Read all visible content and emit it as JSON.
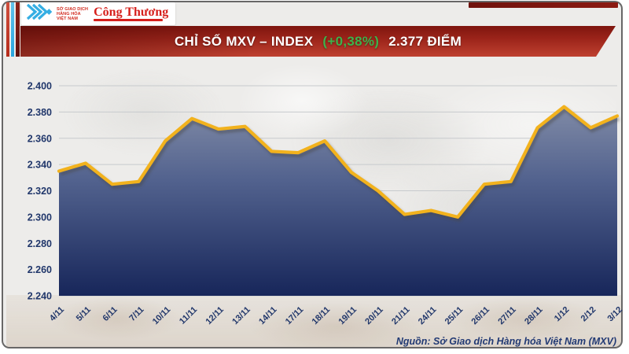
{
  "header": {
    "mxv": {
      "org_lines": [
        "SỞ GIAO DỊCH",
        "HÀNG HÓA",
        "VIỆT NAM"
      ],
      "icon": "mxv-chevrons-icon"
    },
    "congthuong": {
      "wordmark": "Công Thương"
    }
  },
  "banner": {
    "title_prefix": "CHỈ SỐ MXV – INDEX",
    "change": "(+0,38%)",
    "value_text": "2.377 ĐIỂM"
  },
  "footer": {
    "source": "Nguồn: Sở Giao dịch Hàng hóa Việt Nam (MXV)"
  },
  "colors": {
    "banner_red_top": "#7e150e",
    "banner_red_bottom": "#bf4130",
    "change_green": "#3db24b",
    "line_yellow": "#f2b21d",
    "fill_top": "#8d96ad",
    "fill_mid": "#52628e",
    "fill_bottom": "#17265a",
    "axis_text": "#21376b",
    "gridline": "#c7cacd",
    "logo_cyan": "#35aee3",
    "logo_red": "#d6201c"
  },
  "chart_data": {
    "type": "area",
    "title": "CHỈ SỐ MXV – INDEX (+0,38%) 2.377 ĐIỂM",
    "unit": "điểm",
    "value_format": "vi-VN (dot = thousands separator)",
    "categories": [
      "4/11",
      "5/11",
      "6/11",
      "7/11",
      "10/11",
      "11/11",
      "12/11",
      "13/11",
      "14/11",
      "17/11",
      "18/11",
      "19/11",
      "20/11",
      "21/11",
      "24/11",
      "25/11",
      "26/11",
      "27/11",
      "28/11",
      "1/12",
      "2/12",
      "3/12"
    ],
    "values": [
      2335,
      2341,
      2325,
      2327,
      2358,
      2375,
      2367,
      2369,
      2350,
      2349,
      2358,
      2334,
      2320,
      2302,
      2305,
      2300,
      2325,
      2327,
      2368,
      2384,
      2368,
      2377
    ],
    "ylim": [
      2240,
      2400
    ],
    "yticks": [
      {
        "value": 2400,
        "label": "2.400"
      },
      {
        "value": 2380,
        "label": "2.380"
      },
      {
        "value": 2360,
        "label": "2.360"
      },
      {
        "value": 2340,
        "label": "2.340"
      },
      {
        "value": 2320,
        "label": "2.320"
      },
      {
        "value": 2300,
        "label": "2.300"
      },
      {
        "value": 2280,
        "label": "2.280"
      },
      {
        "value": 2260,
        "label": "2.260"
      },
      {
        "value": 2240,
        "label": "2.240"
      }
    ],
    "grid": "horizontal",
    "legend": "none",
    "xlabel": "",
    "ylabel": ""
  }
}
